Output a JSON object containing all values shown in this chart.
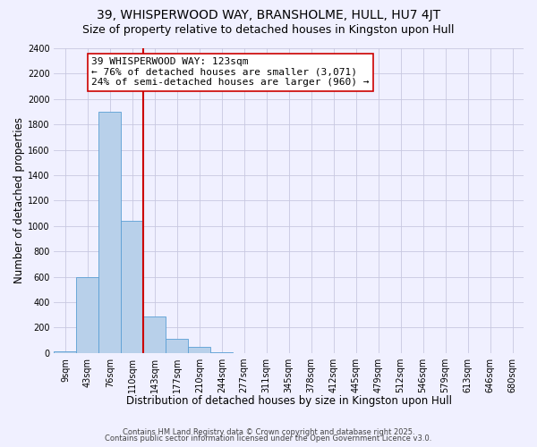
{
  "title": "39, WHISPERWOOD WAY, BRANSHOLME, HULL, HU7 4JT",
  "subtitle": "Size of property relative to detached houses in Kingston upon Hull",
  "xlabel": "Distribution of detached houses by size in Kingston upon Hull",
  "ylabel": "Number of detached properties",
  "bar_labels": [
    "9sqm",
    "43sqm",
    "76sqm",
    "110sqm",
    "143sqm",
    "177sqm",
    "210sqm",
    "244sqm",
    "277sqm",
    "311sqm",
    "345sqm",
    "378sqm",
    "412sqm",
    "445sqm",
    "479sqm",
    "512sqm",
    "546sqm",
    "579sqm",
    "613sqm",
    "646sqm",
    "680sqm"
  ],
  "bar_values": [
    15,
    600,
    1900,
    1040,
    290,
    110,
    45,
    5,
    0,
    0,
    0,
    0,
    0,
    0,
    0,
    0,
    0,
    0,
    0,
    0,
    0
  ],
  "bar_color": "#b8d0ea",
  "bar_edge_color": "#5a9fd4",
  "vline_color": "#cc0000",
  "ylim": [
    0,
    2400
  ],
  "yticks": [
    0,
    200,
    400,
    600,
    800,
    1000,
    1200,
    1400,
    1600,
    1800,
    2000,
    2200,
    2400
  ],
  "annotation_title": "39 WHISPERWOOD WAY: 123sqm",
  "annotation_line1": "← 76% of detached houses are smaller (3,071)",
  "annotation_line2": "24% of semi-detached houses are larger (960) →",
  "footer1": "Contains HM Land Registry data © Crown copyright and database right 2025.",
  "footer2": "Contains public sector information licensed under the Open Government Licence v3.0.",
  "bg_color": "#f0f0ff",
  "grid_color": "#c8c8e0",
  "title_fontsize": 10,
  "subtitle_fontsize": 9,
  "axis_label_fontsize": 8.5,
  "tick_fontsize": 7,
  "footer_fontsize": 6,
  "ann_fontsize": 8
}
